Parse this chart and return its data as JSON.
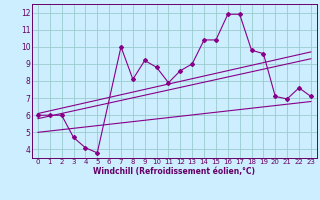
{
  "title": "",
  "xlabel": "Windchill (Refroidissement éolien,°C)",
  "ylabel": "",
  "bg_color": "#cceeff",
  "line_color": "#880088",
  "grid_color": "#99cccc",
  "tick_color": "#660066",
  "spine_color": "#660066",
  "xlim": [
    -0.5,
    23.5
  ],
  "ylim": [
    3.5,
    12.5
  ],
  "xticks": [
    0,
    1,
    2,
    3,
    4,
    5,
    6,
    7,
    8,
    9,
    10,
    11,
    12,
    13,
    14,
    15,
    16,
    17,
    18,
    19,
    20,
    21,
    22,
    23
  ],
  "yticks": [
    4,
    5,
    6,
    7,
    8,
    9,
    10,
    11,
    12
  ],
  "data_x": [
    0,
    1,
    2,
    3,
    4,
    5,
    7,
    8,
    9,
    10,
    11,
    12,
    13,
    14,
    15,
    16,
    17,
    18,
    19,
    20,
    21,
    22,
    23
  ],
  "data_y": [
    6.0,
    6.0,
    6.0,
    4.7,
    4.1,
    3.8,
    10.0,
    8.1,
    9.2,
    8.8,
    7.9,
    8.6,
    9.0,
    10.4,
    10.4,
    11.9,
    11.9,
    9.8,
    9.6,
    7.1,
    6.95,
    7.6,
    7.1
  ],
  "trend1_x": [
    0,
    23
  ],
  "trend1_y": [
    6.1,
    9.7
  ],
  "trend2_x": [
    0,
    23
  ],
  "trend2_y": [
    5.8,
    9.3
  ],
  "trend3_x": [
    0,
    23
  ],
  "trend3_y": [
    5.0,
    6.8
  ]
}
